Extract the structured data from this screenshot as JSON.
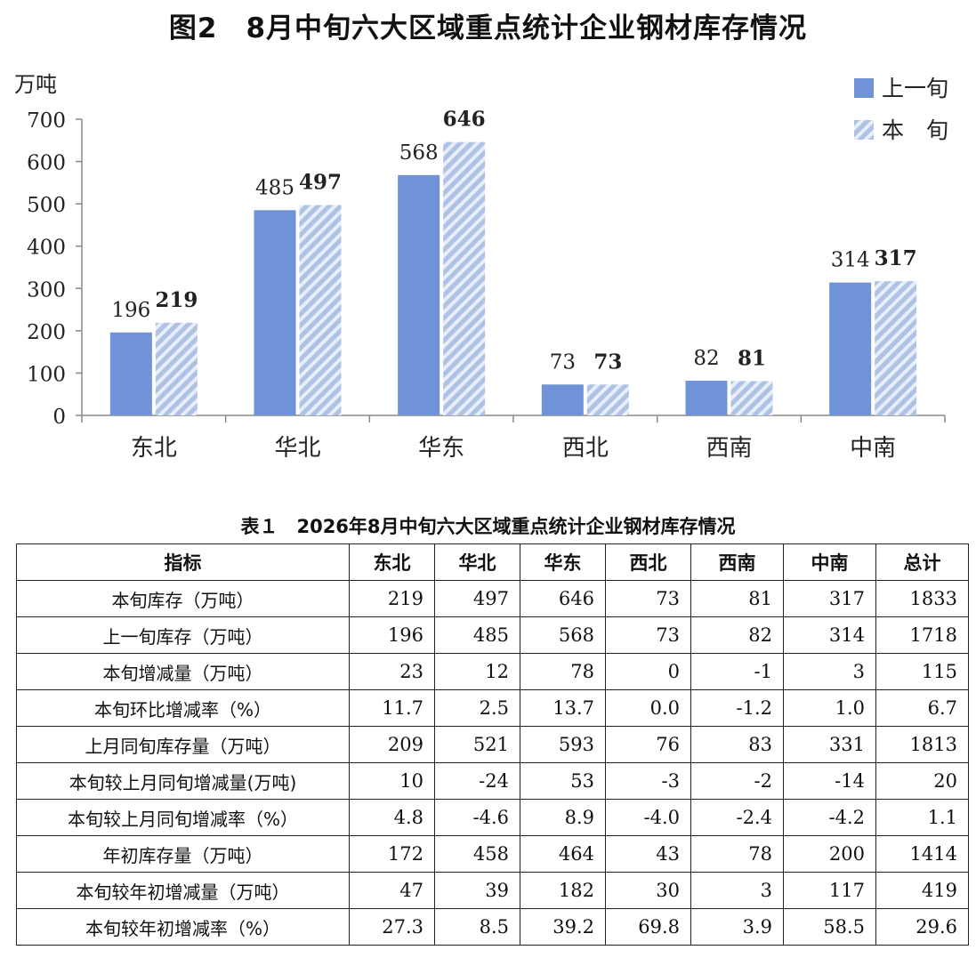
{
  "figure_title": "图2　8月中旬六大区域重点统计企业钢材库存情况",
  "colors": {
    "prev": "#6f93d6",
    "curr_stripe": "#aec2e6",
    "curr_bg": "#e8eef8",
    "axis": "#888888"
  },
  "chart_data": {
    "type": "bar",
    "ylabel": "万吨",
    "ylim": [
      0,
      700
    ],
    "yticks": [
      0,
      100,
      200,
      300,
      400,
      500,
      600,
      700
    ],
    "categories": [
      "东北",
      "华北",
      "华东",
      "西北",
      "西南",
      "中南"
    ],
    "series": [
      {
        "name": "上一旬",
        "values": [
          196,
          485,
          568,
          73,
          82,
          314
        ]
      },
      {
        "name": "本　旬",
        "values": [
          219,
          497,
          646,
          73,
          81,
          317
        ]
      }
    ],
    "legend_position": "top-right",
    "grid": false
  },
  "table": {
    "caption": "表１　2026年8月中旬六大区域重点统计企业钢材库存情况",
    "headers": [
      "指标",
      "东北",
      "华北",
      "华东",
      "西北",
      "西南",
      "中南",
      "总计"
    ],
    "rows": [
      [
        "本旬库存（万吨）",
        "219",
        "497",
        "646",
        "73",
        "81",
        "317",
        "1833"
      ],
      [
        "上一旬库存（万吨）",
        "196",
        "485",
        "568",
        "73",
        "82",
        "314",
        "1718"
      ],
      [
        "本旬增减量（万吨）",
        "23",
        "12",
        "78",
        "0",
        "-1",
        "3",
        "115"
      ],
      [
        "本旬环比增减率（%）",
        "11.7",
        "2.5",
        "13.7",
        "0.0",
        "-1.2",
        "1.0",
        "6.7"
      ],
      [
        "上月同旬库存量（万吨）",
        "209",
        "521",
        "593",
        "76",
        "83",
        "331",
        "1813"
      ],
      [
        "本旬较上月同旬增减量(万吨)",
        "10",
        "-24",
        "53",
        "-3",
        "-2",
        "-14",
        "20"
      ],
      [
        "本旬较上月同旬增减率（%）",
        "4.8",
        "-4.6",
        "8.9",
        "-4.0",
        "-2.4",
        "-4.2",
        "1.1"
      ],
      [
        "年初库存量（万吨）",
        "172",
        "458",
        "464",
        "43",
        "78",
        "200",
        "1414"
      ],
      [
        "本旬较年初增减量（万吨）",
        "47",
        "39",
        "182",
        "30",
        "3",
        "117",
        "419"
      ],
      [
        "本旬较年初增减率（%）",
        "27.3",
        "8.5",
        "39.2",
        "69.8",
        "3.9",
        "58.5",
        "29.6"
      ]
    ]
  }
}
